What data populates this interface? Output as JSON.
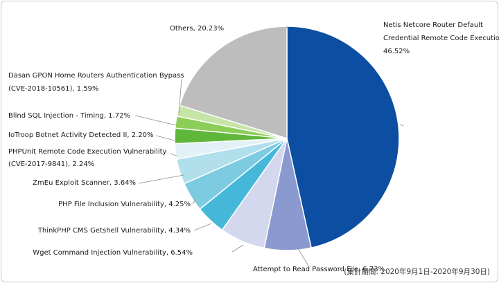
{
  "chart_data": {
    "type": "pie",
    "categories": [
      "Netis Netcore Router Default Credential Remote Code Execution",
      "Attempt to Read Password File",
      "Wget Command Injection Vulnerability",
      "ThinkPHP CMS Getshell Vulnerability",
      "PHP File Inclusion Vulnerability",
      "ZmEu Exploit Scanner",
      "PHPUnit Remote Code Execution Vulnerability (CVE-2017-9841)",
      "IoTroop Botnet Activity Detected II",
      "Blind SQL Injection - Timing",
      "Dasan GPON Home Routers Authentication Bypass (CVE-2018-10561)",
      "Others"
    ],
    "values": [
      46.52,
      6.73,
      6.54,
      4.34,
      4.25,
      3.64,
      2.24,
      2.2,
      1.72,
      1.59,
      20.23
    ],
    "colors": [
      "#0b4ea2",
      "#8a9ad0",
      "#d3d8ee",
      "#45b8d9",
      "#7dcbe1",
      "#b1dfeb",
      "#e1f1f6",
      "#5fb73a",
      "#8ccd58",
      "#c6e4a6",
      "#bdbdbd"
    ],
    "labels": [
      [
        "Netis Netcore Router Default",
        "Credential Remote Code Execution,",
        "46.52%"
      ],
      [
        "Attempt to Read Password File, 6.73%"
      ],
      [
        "Wget Command Injection Vulnerability, 6.54%"
      ],
      [
        "ThinkPHP CMS Getshell Vulnerability, 4.34%"
      ],
      [
        "PHP File Inclusion Vulnerability, 4.25%"
      ],
      [
        "ZmEu Exploit Scanner, 3.64%"
      ],
      [
        "PHPUnit Remote Code Execution Vulnerability",
        "(CVE-2017-9841), 2.24%"
      ],
      [
        "IoTroop Botnet Activity Detected II, 2.20%"
      ],
      [
        "Blind SQL Injection - Timing, 1.72%"
      ],
      [
        "Dasan GPON Home Routers Authentication Bypass",
        "(CVE-2018-10561), 1.59%"
      ],
      [
        "Others, 20.23%"
      ]
    ],
    "start": "12 o'clock",
    "direction": "clockwise"
  },
  "period_note": "(集計期間: 2020年9月1日-2020年9月30日)"
}
